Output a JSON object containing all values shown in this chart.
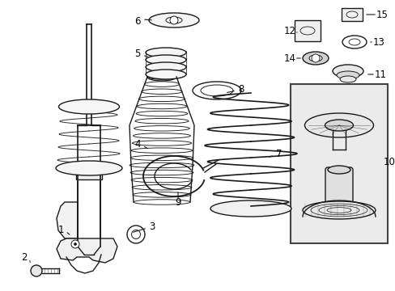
{
  "bg_color": "#ffffff",
  "line_color": "#1a1a1a",
  "label_color": "#000000",
  "box_fill": "#ebebeb",
  "box_edge": "#444444",
  "figw": 4.89,
  "figh": 3.6,
  "dpi": 100
}
